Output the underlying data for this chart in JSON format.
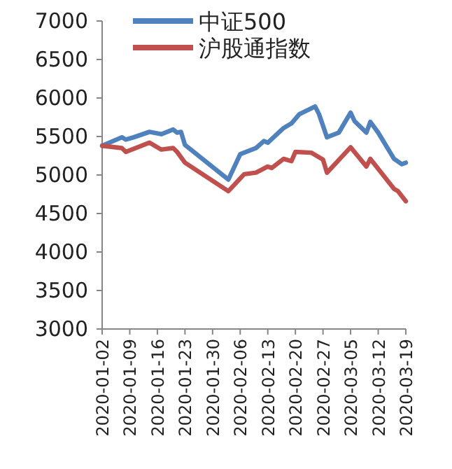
{
  "chart_data": {
    "type": "line",
    "x": [
      "2020-01-02",
      "2020-01-07",
      "2020-01-08",
      "2020-01-10",
      "2020-01-14",
      "2020-01-17",
      "2020-01-20",
      "2020-01-21",
      "2020-01-22",
      "2020-01-23",
      "2020-02-03",
      "2020-02-06",
      "2020-02-10",
      "2020-02-12",
      "2020-02-13",
      "2020-02-17",
      "2020-02-19",
      "2020-02-21",
      "2020-02-25",
      "2020-02-26",
      "2020-02-28",
      "2020-03-02",
      "2020-03-05",
      "2020-03-06",
      "2020-03-09",
      "2020-03-10",
      "2020-03-12",
      "2020-03-16",
      "2020-03-18",
      "2020-03-19"
    ],
    "series": [
      {
        "name": "中证500",
        "color": "#4f81bd",
        "values": [
          5380,
          5490,
          5460,
          5490,
          5560,
          5530,
          5590,
          5550,
          5560,
          5390,
          4940,
          5270,
          5350,
          5440,
          5420,
          5610,
          5670,
          5790,
          5890,
          5790,
          5490,
          5550,
          5810,
          5700,
          5550,
          5690,
          5550,
          5210,
          5140,
          5160
        ]
      },
      {
        "name": "沪股通指数",
        "color": "#c0504d",
        "x": [
          "2020-01-02",
          "2020-01-07",
          "2020-01-08",
          "2020-01-14",
          "2020-01-17",
          "2020-01-20",
          "2020-01-21",
          "2020-01-23",
          "2020-02-03",
          "2020-02-07",
          "2020-02-10",
          "2020-02-13",
          "2020-02-14",
          "2020-02-17",
          "2020-02-19",
          "2020-02-20",
          "2020-02-24",
          "2020-02-27",
          "2020-02-28",
          "2020-03-05",
          "2020-03-09",
          "2020-03-10",
          "2020-03-16",
          "2020-03-17",
          "2020-03-19"
        ],
        "values": [
          5380,
          5350,
          5300,
          5420,
          5330,
          5350,
          5300,
          5160,
          4790,
          5010,
          5030,
          5110,
          5090,
          5210,
          5180,
          5300,
          5290,
          5200,
          5030,
          5360,
          5110,
          5210,
          4820,
          4790,
          4660
        ]
      }
    ],
    "xlim": [
      "2020-01-02",
      "2020-03-19"
    ],
    "xticks": [
      "2020-01-02",
      "2020-01-09",
      "2020-01-16",
      "2020-01-23",
      "2020-01-30",
      "2020-02-06",
      "2020-02-13",
      "2020-02-20",
      "2020-02-27",
      "2020-03-05",
      "2020-03-12",
      "2020-03-19"
    ],
    "ylim": [
      3000,
      7000
    ],
    "yticks": [
      3000,
      3500,
      4000,
      4500,
      5000,
      5500,
      6000,
      6500,
      7000
    ],
    "legend": "top",
    "marker": "none",
    "line_style": "solid"
  }
}
